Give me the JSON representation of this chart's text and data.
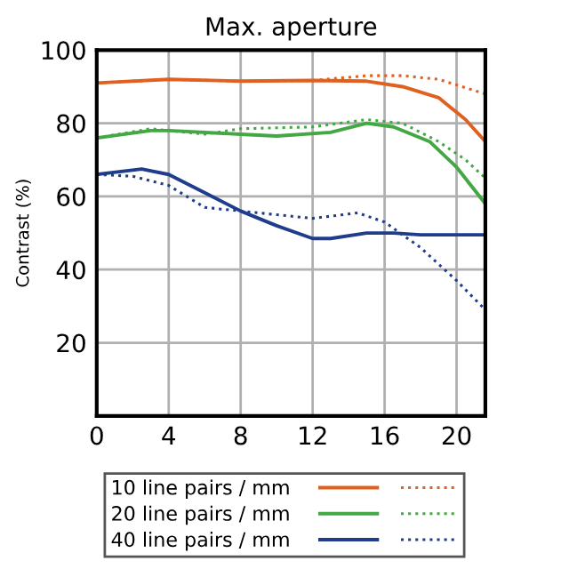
{
  "chart_data": {
    "type": "line",
    "title": "Max. aperture",
    "ylabel": "Contrast (%)",
    "xlim": [
      0,
      21.6
    ],
    "xticks": [
      0,
      4,
      8,
      12,
      16,
      20
    ],
    "ylim": [
      0,
      100
    ],
    "yticks": [
      {
        "value": 0,
        "label": null
      },
      20,
      40,
      60,
      80,
      100
    ],
    "grid": true,
    "legend": "bottom",
    "marker": "none",
    "series": [
      {
        "name": "10 line pairs / mm",
        "color": "#e0601f",
        "line_style": "solid",
        "x": [
          0,
          4,
          8,
          12,
          15,
          17,
          19,
          20.5,
          21.6
        ],
        "values": [
          91,
          92,
          91.5,
          91.7,
          91.5,
          90,
          87,
          81,
          75
        ]
      },
      {
        "color": "#e0601f",
        "line_style": "dotted",
        "x": [
          0,
          4,
          8,
          12,
          15,
          17,
          19,
          21.6
        ],
        "values": [
          91,
          92,
          91.5,
          91.7,
          93,
          93,
          92,
          88
        ]
      },
      {
        "name": "20 line pairs / mm",
        "color": "#43a843",
        "line_style": "solid",
        "x": [
          0,
          3,
          4,
          8,
          10,
          13,
          15,
          16.5,
          18.5,
          20,
          21.6
        ],
        "values": [
          76,
          78,
          78,
          77,
          76.5,
          77.5,
          80,
          79,
          75,
          68,
          58
        ]
      },
      {
        "color": "#43a843",
        "line_style": "dotted",
        "x": [
          0,
          3,
          6,
          8,
          12,
          15,
          17,
          19,
          20.5,
          21.6
        ],
        "values": [
          76,
          78.5,
          77,
          78.5,
          79,
          81,
          80,
          75,
          70,
          65
        ]
      },
      {
        "name": "40 line pairs / mm",
        "color": "#1f3d8c",
        "line_style": "solid",
        "x": [
          0,
          2.5,
          4,
          6,
          8,
          10,
          12,
          13,
          15,
          16.5,
          18,
          21.6
        ],
        "values": [
          66,
          67.5,
          66,
          61,
          56,
          52,
          48.5,
          48.5,
          50,
          50,
          49.5,
          49.5
        ]
      },
      {
        "color": "#1f3d8c",
        "line_style": "dotted",
        "x": [
          0,
          2,
          4,
          6,
          8,
          10,
          12,
          14.5,
          16,
          18,
          20,
          21.6
        ],
        "values": [
          66,
          65.5,
          63,
          57,
          56,
          55,
          54,
          55.5,
          53,
          46,
          37,
          29
        ]
      }
    ]
  }
}
